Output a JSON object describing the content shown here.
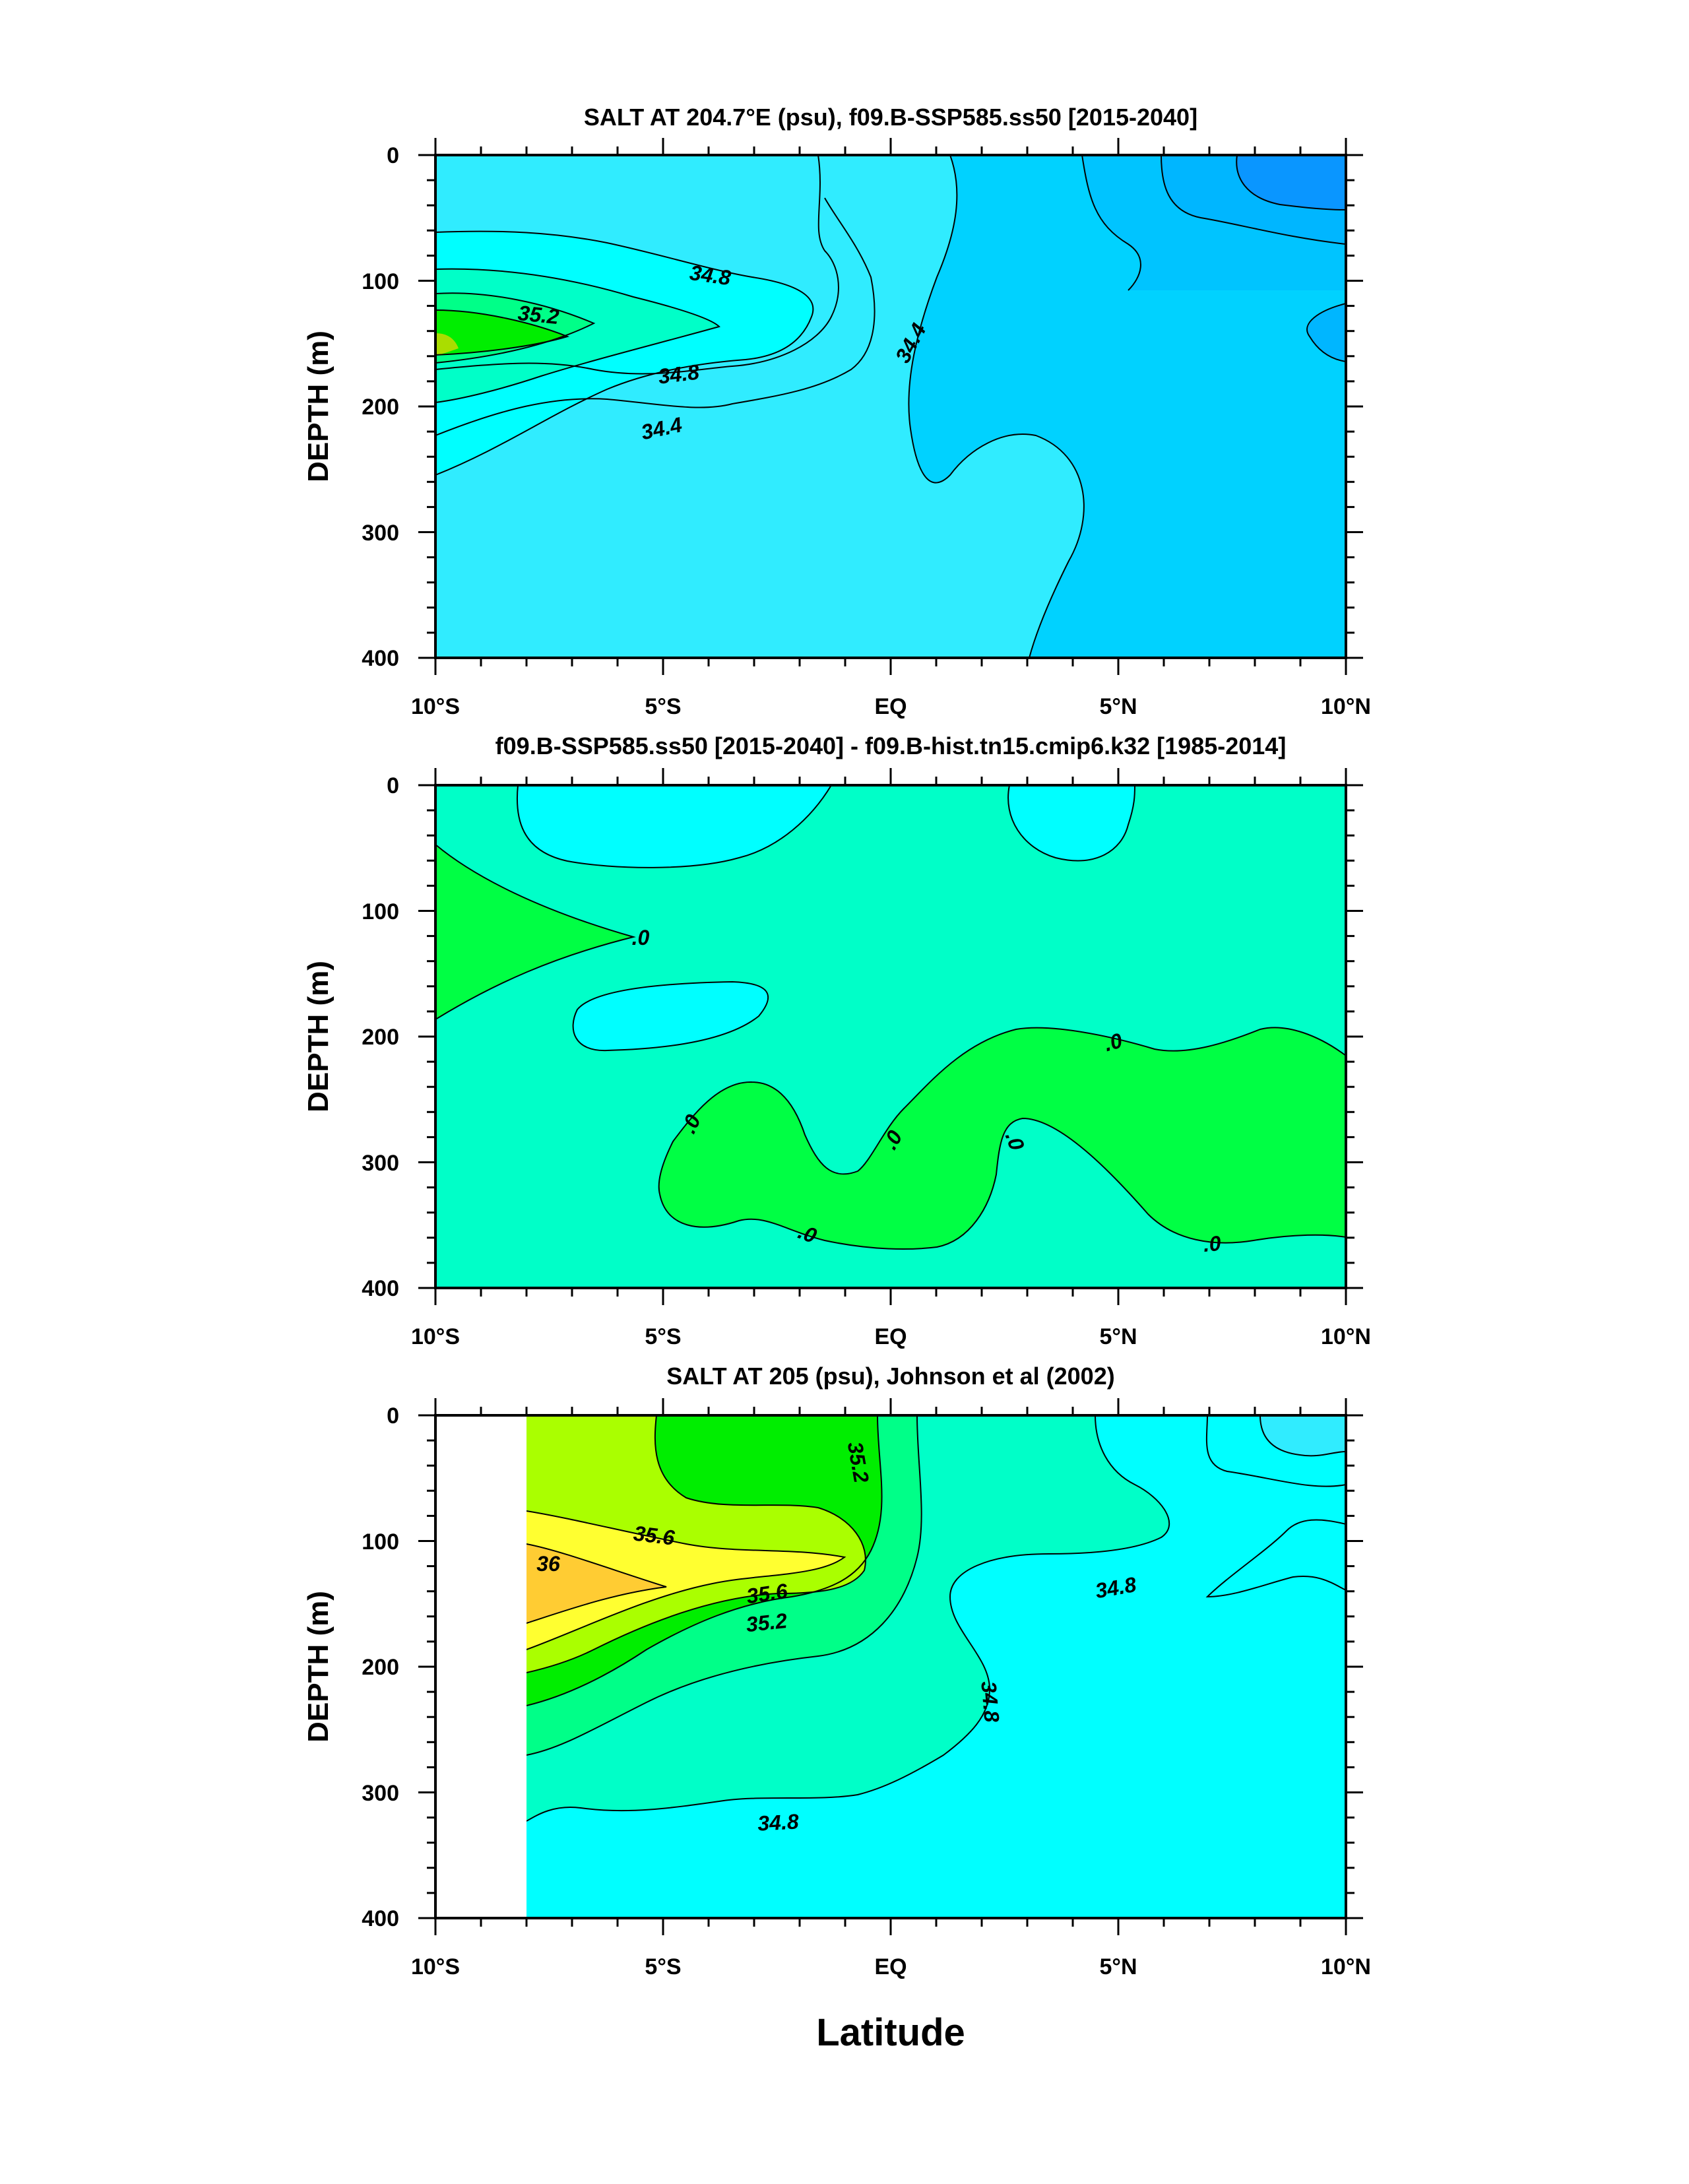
{
  "chart_data": [
    {
      "type": "heatmap",
      "title": "SALT AT 204.7°E (psu), f09.B-SSP585.ss50 [2015-2040]",
      "xlabel": "",
      "ylabel": "DEPTH (m)",
      "xlim": [
        -10,
        10
      ],
      "ylim": [
        0,
        400
      ],
      "x_ticks": [
        -10,
        -5,
        0,
        5,
        10
      ],
      "x_tick_labels": [
        "10°S",
        "5°S",
        "EQ",
        "5°N",
        "10°N"
      ],
      "y_ticks": [
        0,
        100,
        200,
        300,
        400
      ],
      "y_tick_labels": [
        "0",
        "100",
        "200",
        "300",
        "400"
      ],
      "contour_interval": 0.2,
      "contour_labels": [
        {
          "text": "34.8",
          "lat": -4.0,
          "depth": 97
        },
        {
          "text": "35.2",
          "lat": -7.7,
          "depth": 127
        },
        {
          "text": "34.8",
          "lat": -4.7,
          "depth": 173
        },
        {
          "text": "34.4",
          "lat": -5.0,
          "depth": 217
        },
        {
          "text": "34.4",
          "lat": 0.5,
          "depth": 152
        }
      ],
      "fill_colors": [
        "#0a96ff",
        "#00b6ff",
        "#00d2ff",
        "#30ecff",
        "#00ffff",
        "#00ffc8",
        "#00ff88",
        "#00ee00"
      ]
    },
    {
      "type": "heatmap",
      "title": "f09.B-SSP585.ss50 [2015-2040] - f09.B-hist.tn15.cmip6.k32 [1985-2014]",
      "xlabel": "",
      "ylabel": "DEPTH (m)",
      "xlim": [
        -10,
        10
      ],
      "ylim": [
        0,
        400
      ],
      "x_ticks": [
        -10,
        -5,
        0,
        5,
        10
      ],
      "x_tick_labels": [
        "10°S",
        "5°S",
        "EQ",
        "5°N",
        "10°N"
      ],
      "y_ticks": [
        0,
        100,
        200,
        300,
        400
      ],
      "y_tick_labels": [
        "0",
        "100",
        "200",
        "300",
        "400"
      ],
      "contour_labels": [
        {
          "text": ".0",
          "lat": -5.5,
          "depth": 123
        },
        {
          "text": ".0",
          "lat": -5.2,
          "depth": 270
        },
        {
          "text": ".0",
          "lat": -1.8,
          "depth": 355
        },
        {
          "text": ".0",
          "lat": 0.2,
          "depth": 282
        },
        {
          "text": ".0",
          "lat": 2.6,
          "depth": 282
        },
        {
          "text": ".0",
          "lat": 4.9,
          "depth": 205
        },
        {
          "text": ".0",
          "lat": 7.1,
          "depth": 365
        }
      ],
      "fill_colors": [
        "#00ffff",
        "#00ffc8",
        "#00ff44"
      ]
    },
    {
      "type": "heatmap",
      "title": "SALT AT 205 (psu), Johnson et al (2002)",
      "xlabel": "Latitude",
      "ylabel": "DEPTH (m)",
      "xlim": [
        -10,
        10
      ],
      "ylim": [
        0,
        400
      ],
      "data_start_lat": -8,
      "x_ticks": [
        -10,
        -5,
        0,
        5,
        10
      ],
      "x_tick_labels": [
        "10°S",
        "5°S",
        "EQ",
        "5°N",
        "10°N"
      ],
      "y_ticks": [
        0,
        100,
        200,
        300,
        400
      ],
      "y_tick_labels": [
        "0",
        "100",
        "200",
        "300",
        "400"
      ],
      "contour_interval": 0.2,
      "contour_labels": [
        {
          "text": "35.2",
          "lat": -0.9,
          "depth": 38
        },
        {
          "text": "35.6",
          "lat": -3.6,
          "depth": 100
        },
        {
          "text": "36",
          "lat": -7.5,
          "depth": 122
        },
        {
          "text": "35.6",
          "lat": -2.7,
          "depth": 142
        },
        {
          "text": "35.2",
          "lat": -2.7,
          "depth": 165
        },
        {
          "text": "34.8",
          "lat": 5.0,
          "depth": 137
        },
        {
          "text": "34.8",
          "lat": 2.2,
          "depth": 230
        },
        {
          "text": "34.8",
          "lat": -2.5,
          "depth": 330
        }
      ],
      "fill_colors": [
        "#30ecff",
        "#00ffff",
        "#00ffc8",
        "#00ff88",
        "#00ee00",
        "#aaff00",
        "#ffff30",
        "#ffcc33"
      ]
    }
  ]
}
